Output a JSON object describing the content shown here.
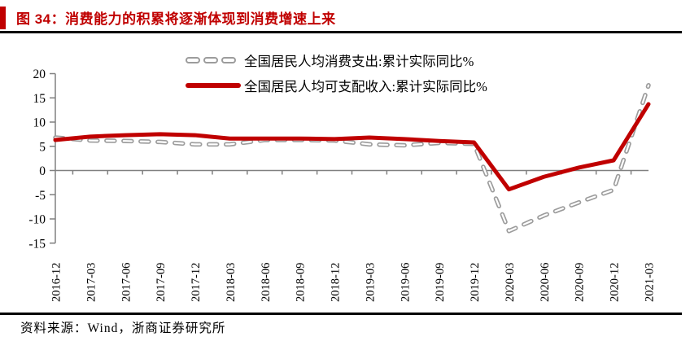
{
  "header": {
    "title": "图 34：消费能力的积累将逐渐体现到消费增速上来"
  },
  "footer": {
    "source": "资料来源：Wind，浙商证券研究所"
  },
  "colors": {
    "accent_red": "#C00000",
    "series_red": "#C00000",
    "series_gray": "#9C9C9C",
    "axis_gray": "#808080",
    "divider_black": "#000000"
  },
  "chart_data": {
    "type": "line",
    "title": "",
    "categories": [
      "2016-12",
      "2017-03",
      "2017-06",
      "2017-09",
      "2017-12",
      "2018-03",
      "2018-06",
      "2018-09",
      "2018-12",
      "2019-03",
      "2019-06",
      "2019-09",
      "2019-12",
      "2020-03",
      "2020-06",
      "2020-09",
      "2020-12",
      "2021-03"
    ],
    "series": [
      {
        "name": "全国居民人均消费支出:累计实际同比%",
        "style": "dashed",
        "color": "#9C9C9C",
        "values": [
          6.8,
          6.2,
          6.1,
          5.9,
          5.4,
          5.4,
          6.3,
          6.3,
          6.2,
          5.4,
          5.2,
          5.7,
          5.5,
          -12.5,
          -9.3,
          -6.6,
          -4.0,
          17.6
        ]
      },
      {
        "name": "全国居民人均可支配收入:累计实际同比%",
        "style": "solid",
        "color": "#C00000",
        "values": [
          6.3,
          7.0,
          7.3,
          7.5,
          7.3,
          6.6,
          6.6,
          6.6,
          6.5,
          6.8,
          6.5,
          6.1,
          5.8,
          -3.9,
          -1.3,
          0.6,
          2.1,
          13.7
        ]
      }
    ],
    "xlabel": "",
    "ylabel": "",
    "ylim": [
      -15,
      20
    ],
    "yticks": [
      20,
      15,
      10,
      5,
      0,
      -5,
      -10,
      -15
    ],
    "grid": "zero-line-only",
    "legend_position": "top-center"
  }
}
